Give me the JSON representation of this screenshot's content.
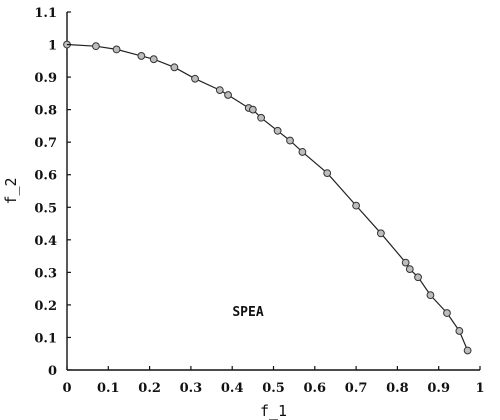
{
  "chart_data": {
    "type": "line",
    "title": "",
    "xlabel": "f_1",
    "ylabel": "f_2",
    "xlim": [
      0,
      1
    ],
    "ylim": [
      0,
      1.1
    ],
    "xticks": [
      "0",
      "0.1",
      "0.2",
      "0.3",
      "0.4",
      "0.5",
      "0.6",
      "0.7",
      "0.8",
      "0.9",
      "1"
    ],
    "yticks": [
      "0",
      "0.1",
      "0.2",
      "0.3",
      "0.4",
      "0.5",
      "0.6",
      "0.7",
      "0.8",
      "0.9",
      "1",
      "1.1"
    ],
    "grid": false,
    "annotation": "SPEA",
    "marker": "circle",
    "series": [
      {
        "x": [
          0.0,
          0.07,
          0.12,
          0.18,
          0.21,
          0.26,
          0.31,
          0.37,
          0.39,
          0.44,
          0.45,
          0.47,
          0.51,
          0.54,
          0.57,
          0.63,
          0.7,
          0.76,
          0.82,
          0.83,
          0.85,
          0.88,
          0.92,
          0.95,
          0.97
        ],
        "y": [
          1.0,
          0.995,
          0.985,
          0.965,
          0.955,
          0.93,
          0.895,
          0.86,
          0.845,
          0.805,
          0.8,
          0.775,
          0.735,
          0.705,
          0.67,
          0.605,
          0.505,
          0.42,
          0.33,
          0.31,
          0.285,
          0.23,
          0.175,
          0.12,
          0.06
        ]
      }
    ]
  }
}
